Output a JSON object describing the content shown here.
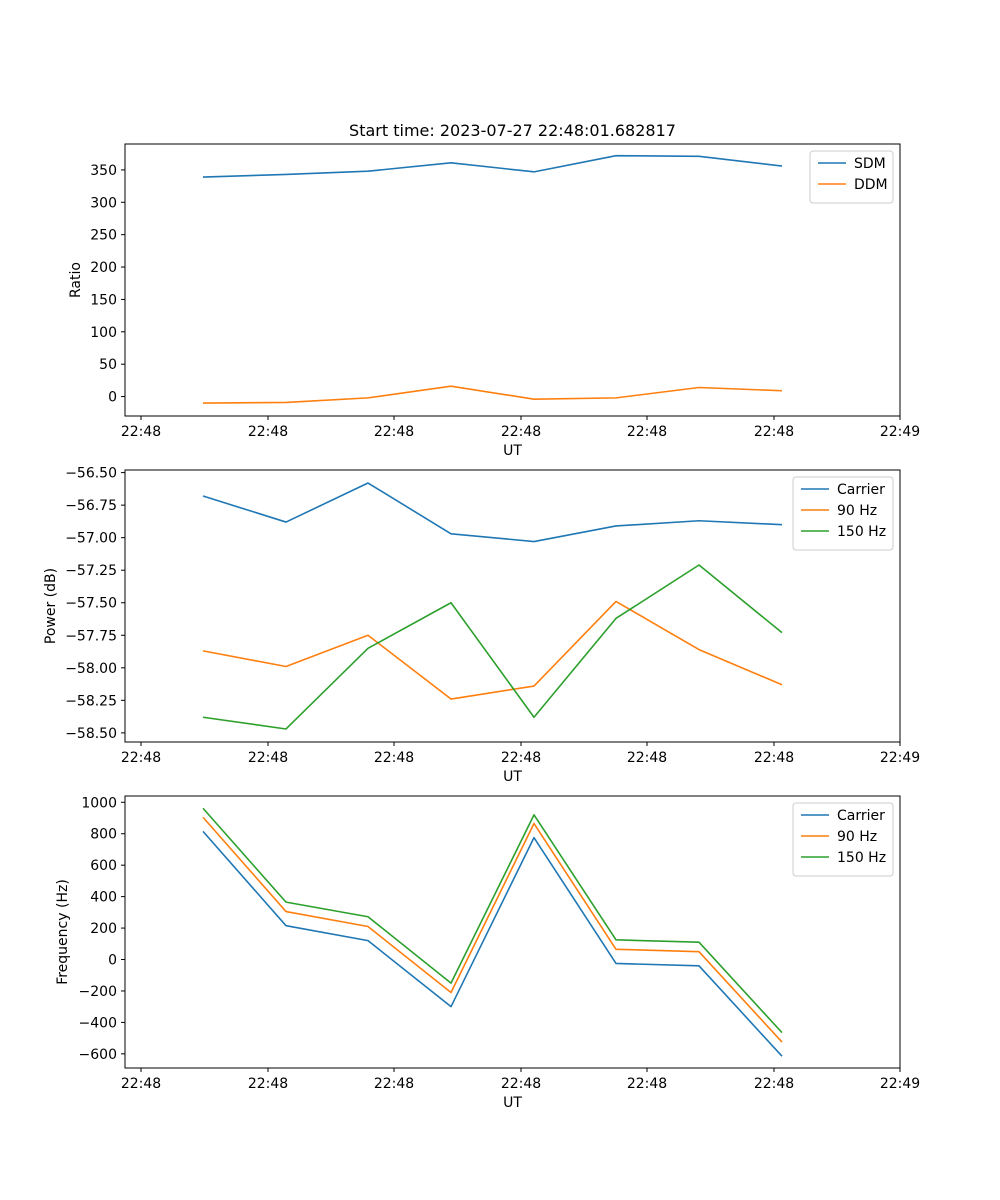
{
  "chart_data": [
    {
      "type": "line",
      "title": "Start time: 2023-07-27 22:48:01.682817",
      "xlabel": "UT",
      "ylabel": "Ratio",
      "x_tick_labels": [
        "22:48",
        "22:48",
        "22:48",
        "22:48",
        "22:48",
        "22:48",
        "22:48"
      ],
      "x_tick_last": "22:49",
      "ylim": [
        -30,
        390
      ],
      "yticks": [
        0,
        50,
        100,
        150,
        200,
        250,
        300,
        350
      ],
      "ytick_labels": [
        "0",
        "50",
        "100",
        "150",
        "200",
        "250",
        "300",
        "350"
      ],
      "legend_position": "top-right",
      "series": [
        {
          "name": "SDM",
          "color": "#1f77b4",
          "values": [
            339,
            343,
            348,
            361,
            347,
            372,
            371,
            356
          ]
        },
        {
          "name": "DDM",
          "color": "#ff7f0e",
          "values": [
            -10,
            -9,
            -2,
            16,
            -4,
            -2,
            14,
            9
          ]
        }
      ]
    },
    {
      "type": "line",
      "title": "",
      "xlabel": "UT",
      "ylabel": "Power (dB)",
      "x_tick_labels": [
        "22:48",
        "22:48",
        "22:48",
        "22:48",
        "22:48",
        "22:48",
        "22:48"
      ],
      "x_tick_last": "22:49",
      "ylim": [
        -58.57,
        -56.48
      ],
      "yticks": [
        -58.5,
        -58.25,
        -58.0,
        -57.75,
        -57.5,
        -57.25,
        -57.0,
        -56.75,
        -56.5
      ],
      "ytick_labels": [
        "−58.50",
        "−58.25",
        "−58.00",
        "−57.75",
        "−57.50",
        "−57.25",
        "−57.00",
        "−56.75",
        "−56.50"
      ],
      "legend_position": "top-right",
      "series": [
        {
          "name": "Carrier",
          "color": "#1f77b4",
          "values": [
            -56.68,
            -56.88,
            -56.58,
            -56.97,
            -57.03,
            -56.91,
            -56.87,
            -56.9
          ]
        },
        {
          "name": "90 Hz",
          "color": "#ff7f0e",
          "values": [
            -57.87,
            -57.99,
            -57.75,
            -58.24,
            -58.14,
            -57.49,
            -57.86,
            -58.13
          ]
        },
        {
          "name": "150 Hz",
          "color": "#2ca02c",
          "values": [
            -58.38,
            -58.47,
            -57.85,
            -57.5,
            -58.38,
            -57.62,
            -57.21,
            -57.73
          ]
        }
      ]
    },
    {
      "type": "line",
      "title": "",
      "xlabel": "UT",
      "ylabel": "Frequency (Hz)",
      "x_tick_labels": [
        "22:48",
        "22:48",
        "22:48",
        "22:48",
        "22:48",
        "22:48",
        "22:48"
      ],
      "x_tick_last": "22:49",
      "ylim": [
        -690,
        1040
      ],
      "yticks": [
        -600,
        -400,
        -200,
        0,
        200,
        400,
        600,
        800,
        1000
      ],
      "ytick_labels": [
        "−600",
        "−400",
        "−200",
        "0",
        "200",
        "400",
        "600",
        "800",
        "1000"
      ],
      "legend_position": "top-right",
      "series": [
        {
          "name": "Carrier",
          "color": "#1f77b4",
          "values": [
            815,
            215,
            120,
            -300,
            775,
            -25,
            -40,
            -615
          ]
        },
        {
          "name": "90 Hz",
          "color": "#ff7f0e",
          "values": [
            905,
            305,
            210,
            -210,
            865,
            65,
            50,
            -525
          ]
        },
        {
          "name": "150 Hz",
          "color": "#2ca02c",
          "values": [
            962,
            365,
            272,
            -150,
            920,
            125,
            110,
            -465
          ]
        }
      ]
    }
  ]
}
